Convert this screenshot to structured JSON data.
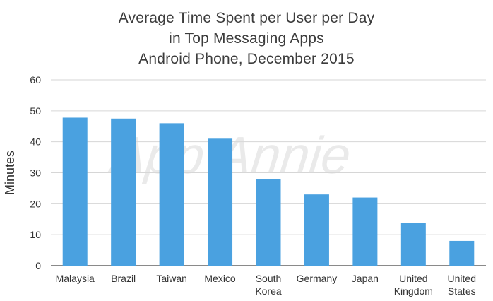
{
  "chart_data": {
    "type": "bar",
    "title": [
      "Average Time Spent per User per Day",
      "in Top Messaging Apps",
      "Android Phone, December 2015"
    ],
    "xlabel": "",
    "ylabel": "Minutes",
    "ylim": [
      0,
      60
    ],
    "yticks": [
      0,
      10,
      20,
      30,
      40,
      50,
      60
    ],
    "grid": true,
    "watermark": "App Annie",
    "categories": [
      [
        "Malaysia"
      ],
      [
        "Brazil"
      ],
      [
        "Taiwan"
      ],
      [
        "Mexico"
      ],
      [
        "South",
        "Korea"
      ],
      [
        "Germany"
      ],
      [
        "Japan"
      ],
      [
        "United",
        "Kingdom"
      ],
      [
        "United",
        "States"
      ]
    ],
    "values": [
      47.8,
      47.5,
      46,
      41,
      28,
      23,
      22,
      13.8,
      8
    ],
    "colors": {
      "bar": "#4aa1e0",
      "grid": "#d6d6d6",
      "axis": "#444444",
      "text": "#333333",
      "watermark": "#d9d9d9"
    }
  }
}
